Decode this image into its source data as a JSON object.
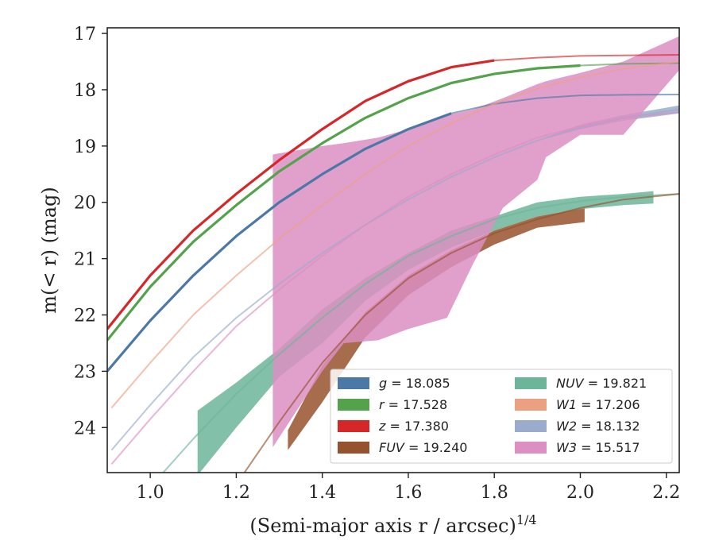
{
  "chart_data": {
    "type": "line",
    "xlabel": "(Semi-major axis r / arcsec)",
    "xlabel_exponent": "1/4",
    "ylabel": "m(< r) (mag)",
    "xlim": [
      0.9,
      2.23
    ],
    "ylim": [
      24.8,
      16.9
    ],
    "y_inverted": true,
    "xticks": [
      "1.0",
      "1.2",
      "1.4",
      "1.6",
      "1.8",
      "2.0",
      "2.2"
    ],
    "yticks": [
      "17",
      "18",
      "19",
      "20",
      "21",
      "22",
      "23",
      "24"
    ],
    "grid": false,
    "legend_placement": "lower-right",
    "series": [
      {
        "key": "g",
        "name": "g",
        "label_value": "18.085",
        "color": "#4c78a8",
        "x": [
          0.9,
          1.0,
          1.1,
          1.2,
          1.3,
          1.4,
          1.5,
          1.6,
          1.7,
          1.8,
          1.9,
          2.0,
          2.1,
          2.23
        ],
        "y": [
          23.0,
          22.1,
          21.3,
          20.6,
          20.0,
          19.5,
          19.05,
          18.7,
          18.42,
          18.25,
          18.15,
          18.1,
          18.09,
          18.085
        ],
        "solid_until": 1.7
      },
      {
        "key": "r",
        "name": "r",
        "label_value": "17.528",
        "color": "#54a24b",
        "x": [
          0.9,
          1.0,
          1.1,
          1.2,
          1.3,
          1.4,
          1.5,
          1.6,
          1.7,
          1.8,
          1.9,
          2.0,
          2.1,
          2.23
        ],
        "y": [
          22.45,
          21.5,
          20.7,
          20.05,
          19.45,
          18.95,
          18.5,
          18.15,
          17.88,
          17.72,
          17.62,
          17.57,
          17.54,
          17.528
        ],
        "solid_until": 2.0
      },
      {
        "key": "z",
        "name": "z",
        "label_value": "17.380",
        "color": "#d62728",
        "x": [
          0.9,
          1.0,
          1.1,
          1.2,
          1.3,
          1.4,
          1.5,
          1.6,
          1.7,
          1.8,
          1.9,
          2.0,
          2.1,
          2.23
        ],
        "y": [
          22.25,
          21.3,
          20.5,
          19.85,
          19.25,
          18.7,
          18.2,
          17.85,
          17.6,
          17.48,
          17.43,
          17.4,
          17.39,
          17.38
        ],
        "solid_until": 1.86
      },
      {
        "key": "W1",
        "name": "W1",
        "label_value": "17.206",
        "color": "#eca082",
        "x": [
          0.91,
          1.0,
          1.1,
          1.2,
          1.3,
          1.4,
          1.5,
          1.6,
          1.7,
          1.8,
          1.9,
          2.0,
          2.1,
          2.23
        ],
        "y": [
          23.65,
          22.85,
          22.0,
          21.3,
          20.65,
          20.05,
          19.5,
          19.0,
          18.6,
          18.25,
          17.98,
          17.78,
          17.63,
          17.5
        ],
        "solid_until": 0.0
      },
      {
        "key": "W2",
        "name": "W2",
        "label_value": "18.132",
        "color": "#9aabcb",
        "x": [
          0.91,
          1.0,
          1.1,
          1.2,
          1.3,
          1.4,
          1.5,
          1.6,
          1.7,
          1.8,
          1.9,
          2.0,
          2.1,
          2.23
        ],
        "y": [
          24.4,
          23.6,
          22.75,
          22.05,
          21.45,
          20.9,
          20.4,
          19.95,
          19.55,
          19.2,
          18.9,
          18.68,
          18.5,
          18.35
        ],
        "band": [
          [
            1.9,
            18.9,
            18.9
          ],
          [
            2.0,
            18.7,
            18.62
          ],
          [
            2.1,
            18.55,
            18.45
          ],
          [
            2.23,
            18.42,
            18.28
          ]
        ],
        "solid_until": 0.0
      },
      {
        "key": "NUV",
        "name": "NUV",
        "label_value": "19.821",
        "color": "#6db59a",
        "x": [
          1.03,
          1.1,
          1.2,
          1.3,
          1.4,
          1.5,
          1.6,
          1.7,
          1.8,
          1.9,
          2.0,
          2.1,
          2.23
        ],
        "y": [
          24.8,
          24.2,
          23.4,
          22.7,
          22.05,
          21.45,
          20.95,
          20.6,
          20.3,
          20.1,
          19.98,
          19.9,
          19.85
        ],
        "band": [
          [
            1.11,
            23.7,
            24.85
          ],
          [
            1.2,
            23.2,
            24.0
          ],
          [
            1.3,
            22.6,
            23.1
          ],
          [
            1.4,
            21.9,
            22.5
          ],
          [
            1.5,
            21.35,
            21.75
          ],
          [
            1.6,
            20.9,
            21.2
          ],
          [
            1.7,
            20.5,
            20.8
          ],
          [
            1.8,
            20.25,
            20.5
          ],
          [
            1.9,
            20.0,
            20.25
          ],
          [
            2.0,
            19.9,
            20.12
          ],
          [
            2.1,
            19.85,
            20.05
          ],
          [
            2.17,
            19.8,
            20.02
          ]
        ],
        "solid_until": 0.0
      },
      {
        "key": "FUV",
        "name": "FUV",
        "label_value": "19.240",
        "color": "#96522d",
        "x": [
          1.21,
          1.3,
          1.4,
          1.5,
          1.6,
          1.7,
          1.8,
          1.9,
          2.0,
          2.1,
          2.23
        ],
        "y": [
          24.9,
          23.9,
          22.85,
          22.0,
          21.35,
          20.9,
          20.55,
          20.3,
          20.1,
          19.95,
          19.85
        ],
        "band": [
          [
            1.32,
            24.05,
            24.4
          ],
          [
            1.4,
            22.9,
            23.55
          ],
          [
            1.5,
            21.95,
            22.4
          ],
          [
            1.6,
            21.3,
            21.65
          ],
          [
            1.7,
            20.85,
            21.15
          ],
          [
            1.8,
            20.5,
            20.75
          ],
          [
            1.9,
            20.25,
            20.45
          ],
          [
            2.01,
            20.1,
            20.35
          ]
        ],
        "solid_until": 0.0
      },
      {
        "key": "W3",
        "name": "W3",
        "label_value": "15.517",
        "color": "#dc8fc2",
        "x": [
          0.91,
          1.0,
          1.1,
          1.2,
          1.3,
          1.4,
          1.5,
          1.6,
          1.7,
          1.8,
          1.9,
          2.0,
          2.1,
          2.23
        ],
        "y": [
          24.65,
          23.85,
          23.0,
          22.2,
          21.55,
          20.95,
          20.4,
          19.9,
          19.5,
          19.15,
          18.85,
          18.65,
          18.5,
          18.4
        ],
        "band": [
          [
            1.285,
            19.15,
            24.35
          ],
          [
            1.4,
            19.0,
            23.0
          ],
          [
            1.45,
            18.95,
            22.5
          ],
          [
            1.53,
            18.85,
            22.45
          ],
          [
            1.6,
            18.7,
            22.25
          ],
          [
            1.69,
            18.45,
            22.05
          ],
          [
            1.75,
            18.35,
            21.1
          ],
          [
            1.82,
            18.15,
            20.1
          ],
          [
            1.9,
            17.9,
            19.6
          ],
          [
            1.92,
            17.85,
            19.2
          ],
          [
            2.0,
            17.7,
            18.8
          ],
          [
            2.1,
            17.5,
            18.8
          ],
          [
            2.23,
            17.05,
            17.65
          ]
        ],
        "solid_until": 0.0
      }
    ]
  },
  "legend": {
    "col1": [
      {
        "key": "g",
        "color": "#4c78a8",
        "var": "g",
        "eq": " = 18.085"
      },
      {
        "key": "r",
        "color": "#54a24b",
        "var": "r",
        "eq": " = 17.528"
      },
      {
        "key": "z",
        "color": "#d62728",
        "var": "z",
        "eq": " = 17.380"
      },
      {
        "key": "FUV",
        "color": "#96522d",
        "var": "FUV",
        "eq": " = 19.240"
      }
    ],
    "col2": [
      {
        "key": "NUV",
        "color": "#6db59a",
        "var": "NUV",
        "eq": " = 19.821"
      },
      {
        "key": "W1",
        "color": "#eca082",
        "var": "W1",
        "eq": " = 17.206"
      },
      {
        "key": "W2",
        "color": "#9aabcb",
        "var": "W2",
        "eq": " = 18.132"
      },
      {
        "key": "W3",
        "color": "#dc8fc2",
        "var": "W3",
        "eq": " = 15.517"
      }
    ]
  }
}
